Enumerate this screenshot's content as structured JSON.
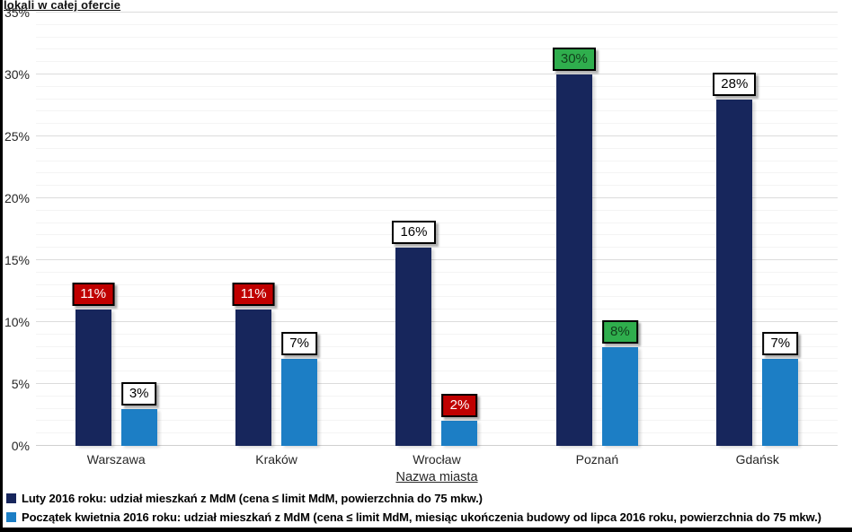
{
  "chart_data": {
    "type": "bar",
    "title_fragment": "lokali w całej ofercie",
    "categories": [
      "Warszawa",
      "Kraków",
      "Wrocław",
      "Poznań",
      "Gdańsk"
    ],
    "series": [
      {
        "name": "Luty 2016 roku: udział mieszkań z MdM (cena ≤ limit MdM, powierzchnia do 75 mkw.)",
        "color": "#17265c",
        "values": [
          11,
          11,
          16,
          30,
          28
        ],
        "data_labels": [
          "11%",
          "11%",
          "16%",
          "30%",
          "28%"
        ],
        "label_box_styles": [
          "red",
          "red",
          "white",
          "green",
          "white"
        ]
      },
      {
        "name": "Początek kwietnia 2016 roku: udział mieszkań z MdM (cena ≤ limit MdM, miesiąc ukończenia budowy od lipca 2016 roku, powierzchnia do 75 mkw.)",
        "color": "#1c7ec5",
        "values": [
          3,
          7,
          2,
          8,
          7
        ],
        "data_labels": [
          "3%",
          "7%",
          "2%",
          "8%",
          "7%"
        ],
        "label_box_styles": [
          "white",
          "white",
          "red",
          "green",
          "white"
        ]
      }
    ],
    "xlabel": "Nazwa miasta",
    "ylabel": "",
    "ylim": [
      0,
      35
    ],
    "y_ticks": [
      "0%",
      "5%",
      "10%",
      "15%",
      "20%",
      "25%",
      "30%",
      "35%"
    ],
    "y_tick_step": 5,
    "y_minor_step": 1,
    "grid": true,
    "legend_position": "bottom"
  },
  "label_box_colors": {
    "red": {
      "bg": "#c00000",
      "text": "#ffffff"
    },
    "green": {
      "bg": "#2fae4d",
      "text": "#123f1c"
    },
    "white": {
      "bg": "#ffffff",
      "text": "#000000"
    }
  }
}
